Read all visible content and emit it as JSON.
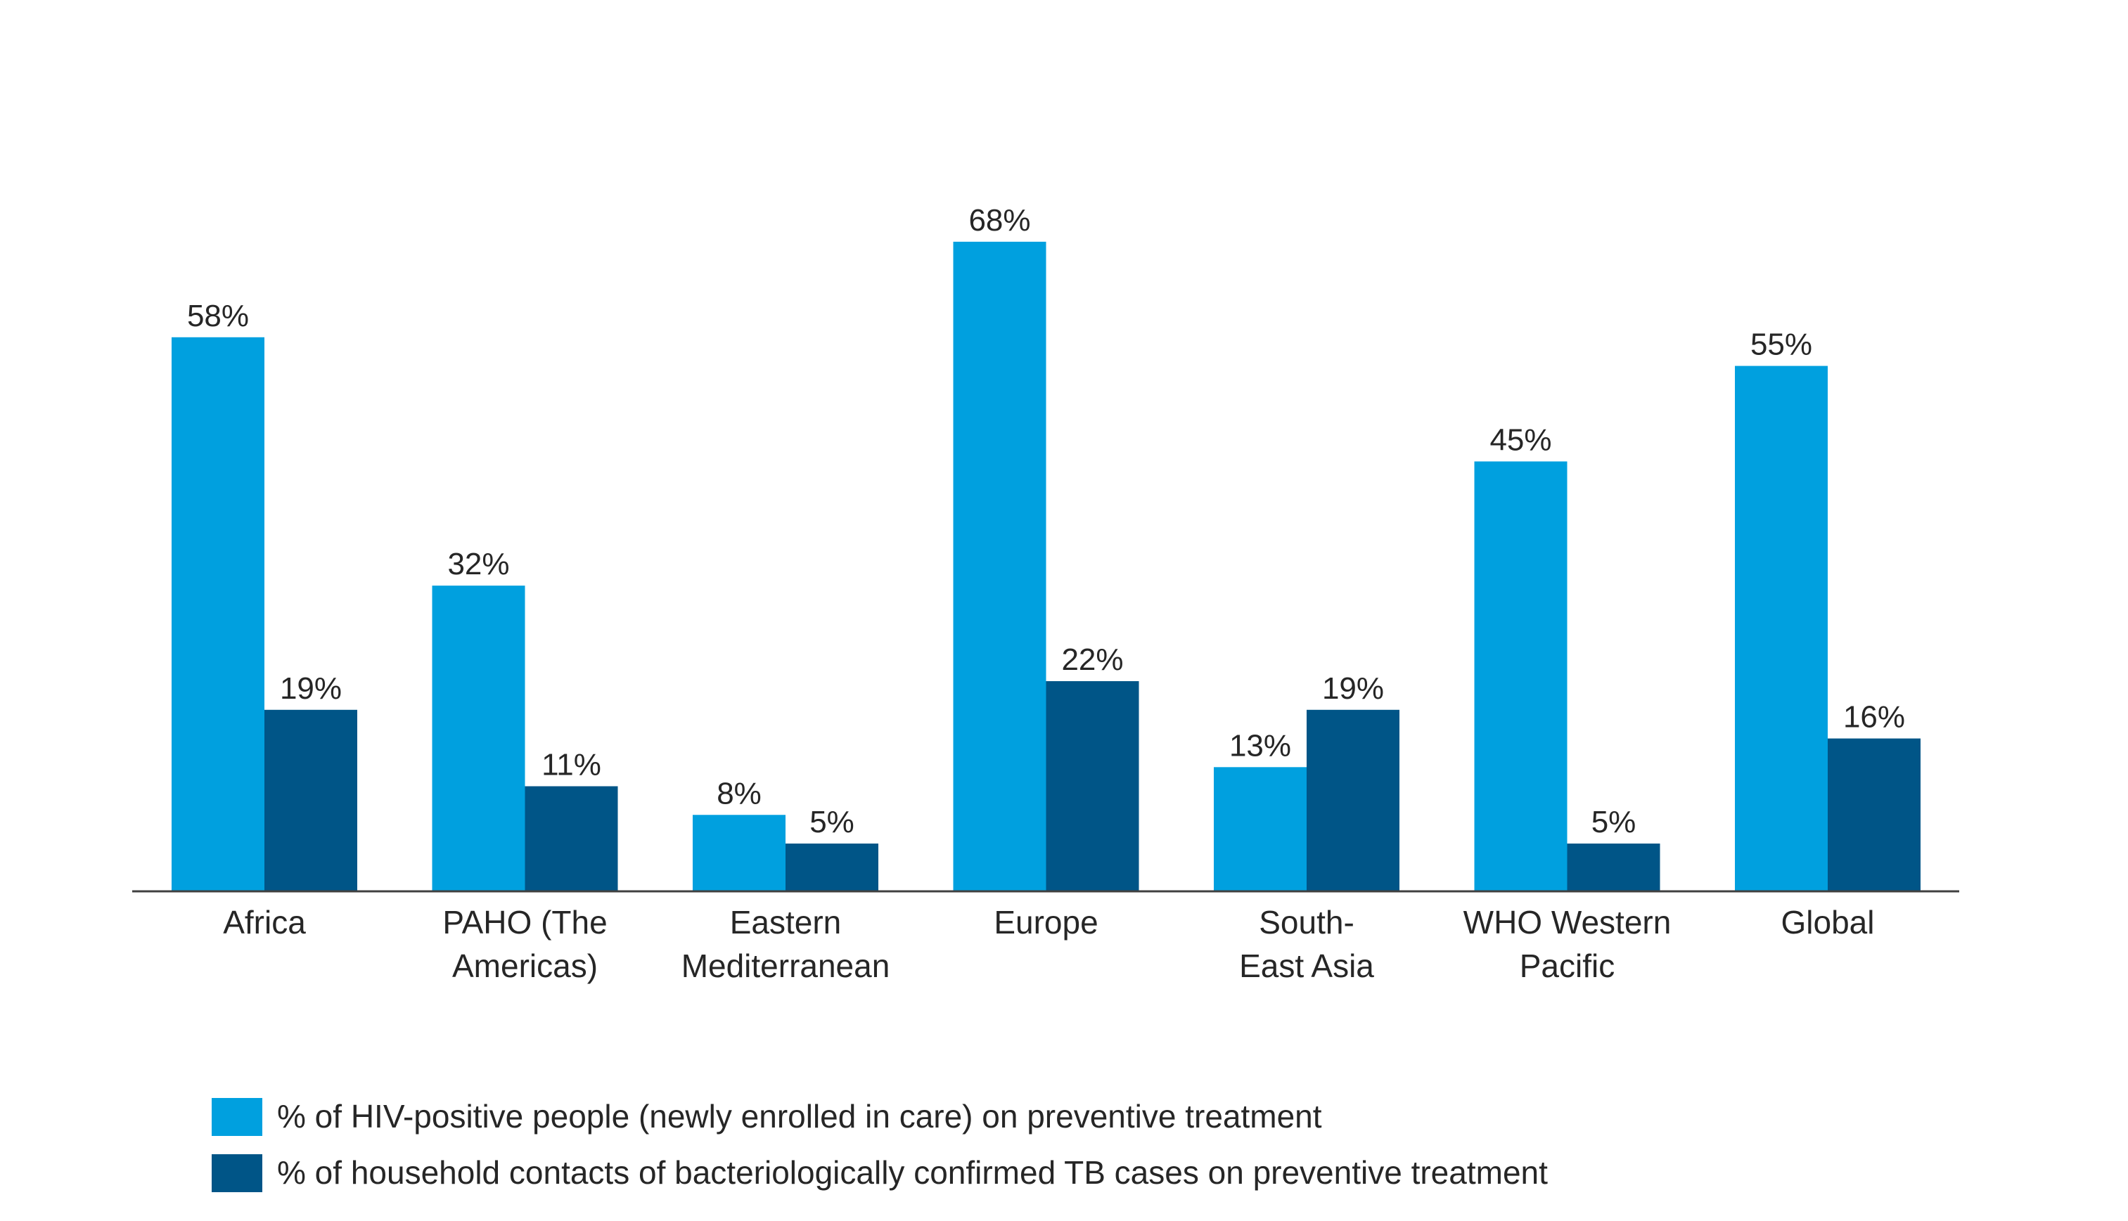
{
  "colors": {
    "hiv_series": "#00A0DF",
    "contacts_series": "#005587",
    "axis": "#404040",
    "text": "#262626"
  },
  "chart_data": {
    "type": "bar",
    "categories": [
      [
        "Africa"
      ],
      [
        "PAHO (The",
        "Americas)"
      ],
      [
        "Eastern",
        "Mediterranean"
      ],
      [
        "Europe"
      ],
      [
        "South-",
        "East Asia"
      ],
      [
        "WHO Western",
        "Pacific"
      ],
      [
        "Global"
      ]
    ],
    "series": [
      {
        "name": "% of HIV-positive people (newly enrolled in care) on preventive treatment",
        "values": [
          58,
          32,
          8,
          68,
          13,
          45,
          55
        ],
        "labels": [
          "58%",
          "32%",
          "8%",
          "68%",
          "13%",
          "45%",
          "55%"
        ]
      },
      {
        "name": "% of household contacts of bacteriologically confirmed TB cases on preventive treatment",
        "values": [
          19,
          11,
          5,
          22,
          19,
          5,
          16
        ],
        "labels": [
          "19%",
          "11%",
          "5%",
          "22%",
          "19%",
          "5%",
          "16%"
        ]
      }
    ],
    "ylim": [
      0,
      80
    ],
    "grid": false,
    "legend_position": "bottom-left",
    "title": "",
    "xlabel": "",
    "ylabel": ""
  }
}
